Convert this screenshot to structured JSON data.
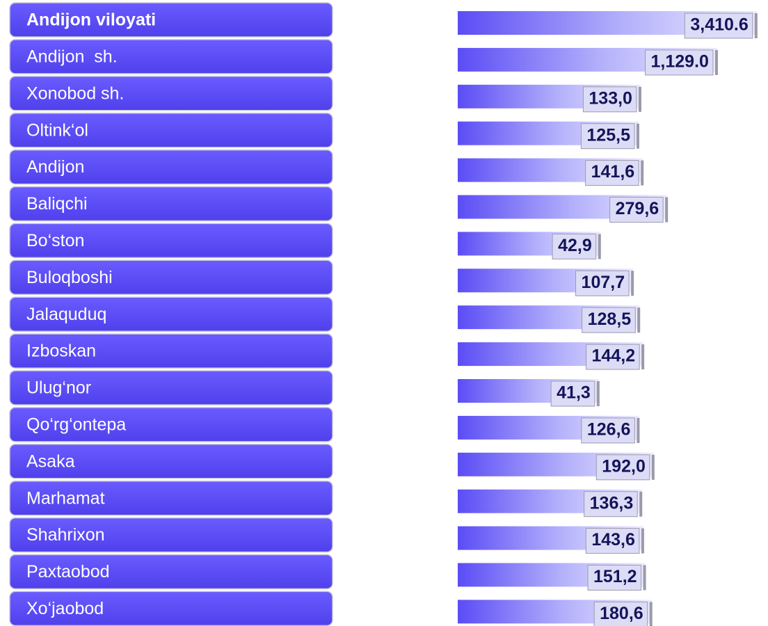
{
  "chart_data": {
    "type": "bar",
    "orientation": "horizontal",
    "log": true,
    "categories": [
      "Andijon viloyati",
      "Andijon  sh.",
      "Xonobod sh.",
      "Oltink‘ol",
      "Andijon",
      "Baliqchi",
      "Bo‘ston",
      "Buloqboshi",
      "Jalaquduq",
      "Izboskan",
      "Ulug‘nor",
      "Qo‘rg‘ontepa",
      "Asaka",
      "Marhamat",
      "Shahrixon",
      "Paxtaobod",
      "Xo‘jaobod"
    ],
    "values": [
      3410.6,
      1129.0,
      133.0,
      125.5,
      141.6,
      279.6,
      42.9,
      107.7,
      128.5,
      144.2,
      41.3,
      126.6,
      192.0,
      136.3,
      143.6,
      151.2,
      180.6
    ],
    "value_labels": [
      "3,410.6",
      "1,129.0",
      "133,0",
      "125,5",
      "141,6",
      "279,6",
      "42,9",
      "107,7",
      "128,5",
      "144,2",
      "41,3",
      "126,6",
      "192,0",
      "136,3",
      "143,6",
      "151,2",
      "180,6"
    ],
    "color": "#5b4cf5",
    "xlim": [
      0.8,
      4000
    ]
  }
}
